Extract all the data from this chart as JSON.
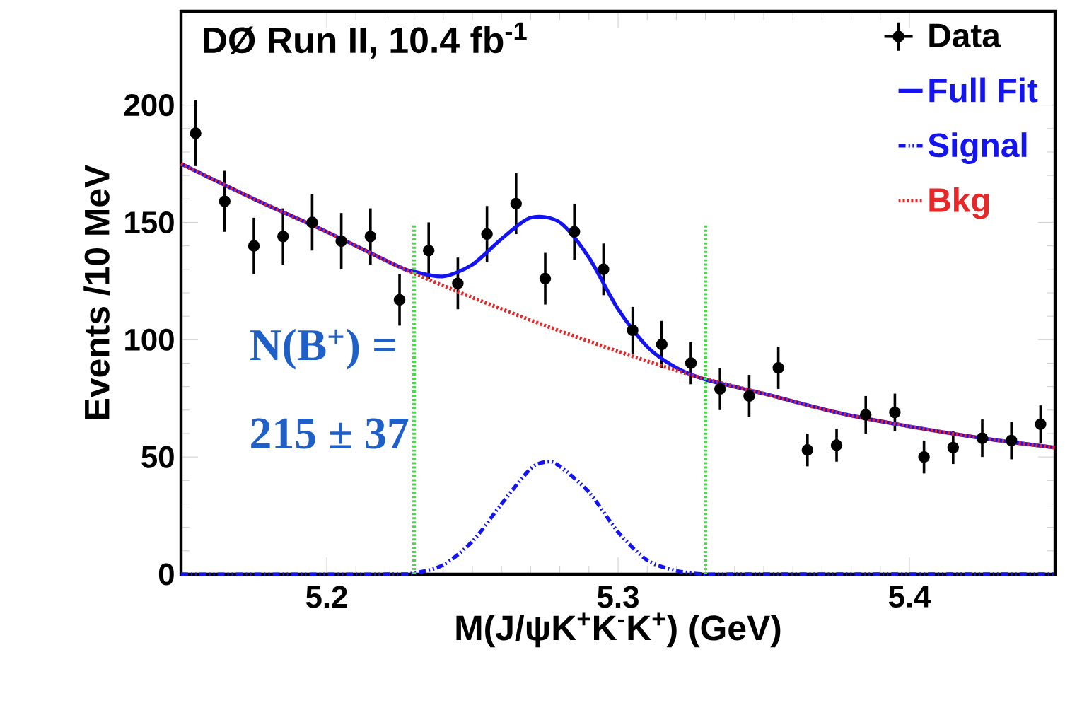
{
  "chart_data": {
    "type": "line",
    "xlabel": "M(J/ψK$^{+}$K$^{-}$K$^{+}$) (GeV)",
    "ylabel": "Events /10 MeV",
    "xlim": [
      5.15,
      5.45
    ],
    "xticks": [
      5.2,
      5.3,
      5.4
    ],
    "ylim": [
      0,
      240
    ],
    "yticks": [
      0,
      50,
      100,
      150,
      200
    ],
    "legend": "top right",
    "annotations": [
      "DØ Run II, 10.4 fb$^{-1}$",
      "N(B$^{+}$) =",
      "215 ± 37"
    ],
    "ref_lines": [
      {
        "axis": "x",
        "value": 5.23,
        "color": "#44dd44",
        "line_style": "dotted"
      },
      {
        "axis": "x",
        "value": 5.33,
        "color": "#44dd44",
        "line_style": "dotted"
      }
    ],
    "series": [
      {
        "name": "Data",
        "type": "scatter",
        "marker": "circle",
        "color": "#000000",
        "x": [
          5.155,
          5.165,
          5.175,
          5.185,
          5.195,
          5.205,
          5.215,
          5.225,
          5.235,
          5.245,
          5.255,
          5.265,
          5.275,
          5.285,
          5.295,
          5.305,
          5.315,
          5.325,
          5.335,
          5.345,
          5.355,
          5.365,
          5.375,
          5.385,
          5.395,
          5.405,
          5.415,
          5.425,
          5.435,
          5.445
        ],
        "values": [
          188,
          159,
          140,
          144,
          150,
          142,
          144,
          117,
          138,
          124,
          145,
          158,
          126,
          146,
          130,
          104,
          98,
          90,
          79,
          76,
          88,
          53,
          55,
          68,
          69,
          50,
          54,
          58,
          57,
          64
        ],
        "errors": [
          14,
          13,
          12,
          12,
          12,
          12,
          12,
          11,
          12,
          11,
          12,
          13,
          11,
          12,
          11,
          10,
          10,
          9,
          9,
          9,
          9,
          7,
          7,
          8,
          8,
          7,
          7,
          8,
          8,
          8
        ]
      },
      {
        "name": "Full Fit",
        "line_style": "solid",
        "color": "#1414f0",
        "x": [
          5.15,
          5.175,
          5.2,
          5.225,
          5.23,
          5.24,
          5.25,
          5.26,
          5.27,
          5.28,
          5.29,
          5.3,
          5.31,
          5.32,
          5.33,
          5.35,
          5.375,
          5.4,
          5.425,
          5.45
        ],
        "values": [
          175,
          160,
          146,
          131,
          129,
          127,
          132,
          143,
          152,
          150,
          135,
          113,
          97,
          88,
          83,
          77,
          69,
          63,
          58,
          54
        ]
      },
      {
        "name": "Signal",
        "line_style": "dashdot",
        "color": "#1414f0",
        "x": [
          5.15,
          5.22,
          5.23,
          5.24,
          5.25,
          5.26,
          5.27,
          5.276,
          5.28,
          5.29,
          5.3,
          5.31,
          5.32,
          5.33,
          5.34,
          5.45
        ],
        "values": [
          0,
          0,
          0.5,
          4,
          14,
          30,
          45,
          48,
          46,
          35,
          18,
          6,
          1.5,
          0,
          0,
          0
        ]
      },
      {
        "name": "Bkg",
        "line_style": "dotted",
        "color": "#e82828",
        "x": [
          5.15,
          5.175,
          5.2,
          5.225,
          5.25,
          5.275,
          5.3,
          5.325,
          5.35,
          5.375,
          5.4,
          5.425,
          5.45
        ],
        "values": [
          175,
          160,
          146,
          131,
          118,
          106,
          95,
          85,
          77,
          69,
          63,
          58,
          54
        ]
      }
    ]
  }
}
